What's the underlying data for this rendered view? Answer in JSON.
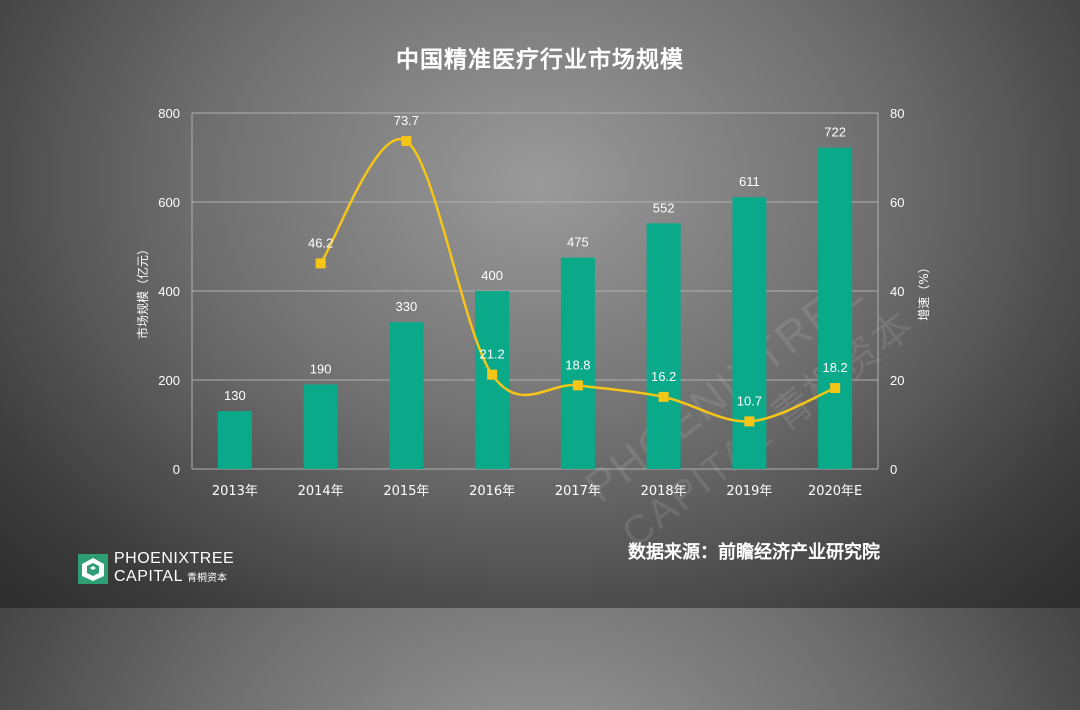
{
  "title": "中国精准医疗行业市场规模",
  "source": "数据来源：前瞻经济产业研究院",
  "logo": {
    "line1": "PHOENIXTREE",
    "line2": "CAPITAL",
    "cn": "青桐资本",
    "icon": "phoenixtree-logo-icon"
  },
  "watermark": {
    "line1": "PHOENIXTREE",
    "line2": "CAPITAL 青桐资本"
  },
  "colors": {
    "bar": "#0aa98a",
    "line": "#f5c518",
    "grid": "#b0b0b0"
  },
  "chart_data": {
    "type": "bar",
    "categories": [
      "2013年",
      "2014年",
      "2015年",
      "2016年",
      "2017年",
      "2018年",
      "2019年",
      "2020年E"
    ],
    "series": [
      {
        "type": "bar",
        "axis": "left",
        "values": [
          130,
          190,
          330,
          400,
          475,
          552,
          611,
          722
        ],
        "labels": [
          "130",
          "190",
          "330",
          "400",
          "475",
          "552",
          "611",
          "722"
        ]
      },
      {
        "type": "line",
        "axis": "right",
        "values": [
          null,
          46.2,
          73.7,
          21.2,
          18.8,
          16.2,
          10.7,
          18.2
        ],
        "labels": [
          null,
          "46.2",
          "73.7",
          "21.2",
          "18.8",
          "16.2",
          "10.7",
          "18.2"
        ]
      }
    ],
    "ylabel_left": "市场规模（亿元）",
    "ylabel_right": "增速（%）",
    "ylim_left": [
      0,
      800
    ],
    "ylim_right": [
      0,
      80
    ],
    "yticks_left": [
      "0",
      "200",
      "400",
      "600",
      "800"
    ],
    "yticks_right": [
      "0",
      "20",
      "40",
      "60",
      "80"
    ],
    "grid": true,
    "legend": "none"
  }
}
